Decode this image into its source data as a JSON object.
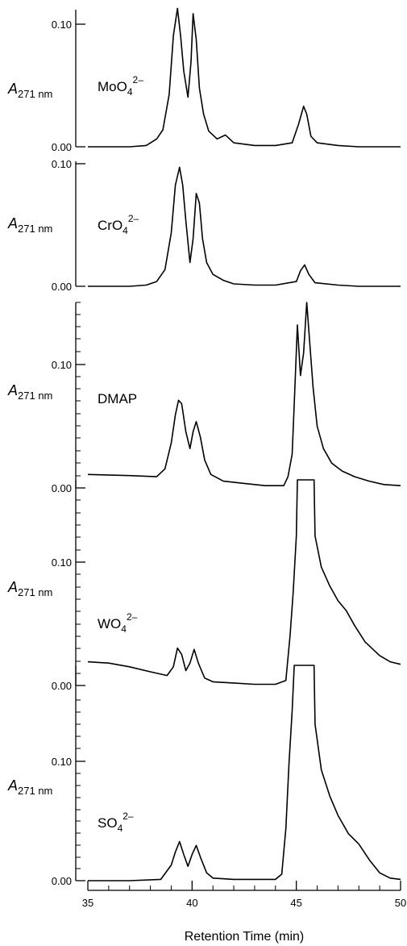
{
  "chart_data": {
    "type": "line",
    "xlabel": "Retention Time (min)",
    "xlim": [
      35,
      50
    ],
    "x_ticks": [
      "35",
      "40",
      "45",
      "50"
    ],
    "y_axis_label": {
      "prefix": "A",
      "subscript": "271 nm"
    },
    "panels": [
      {
        "species": {
          "base": "MoO",
          "sub": "4",
          "sup": "2–"
        },
        "ylim": [
          0,
          0.105
        ],
        "y_ticks": [
          "0.10",
          "0.00"
        ],
        "series": [
          {
            "x": [
              35,
              36,
              37,
              37.8,
              38.3,
              38.6,
              38.9,
              39.1,
              39.3,
              39.45,
              39.6,
              39.8,
              39.95,
              40.05,
              40.2,
              40.35,
              40.55,
              40.8,
              41.2,
              41.6,
              42,
              43,
              44,
              44.8,
              45.1,
              45.35,
              45.5,
              45.7,
              46,
              47,
              48,
              49,
              50
            ],
            "y": [
              0,
              0,
              0,
              0.001,
              0.006,
              0.013,
              0.04,
              0.085,
              0.106,
              0.085,
              0.058,
              0.038,
              0.065,
              0.102,
              0.082,
              0.045,
              0.025,
              0.012,
              0.006,
              0.009,
              0.003,
              0.001,
              0.001,
              0.003,
              0.017,
              0.031,
              0.025,
              0.008,
              0.003,
              0.001,
              0,
              0,
              0
            ]
          }
        ]
      },
      {
        "species": {
          "base": "CrO",
          "sub": "4",
          "sup": "2–"
        },
        "ylim": [
          0,
          0.105
        ],
        "y_ticks": [
          "0.10",
          "0.00"
        ],
        "series": [
          {
            "x": [
              35,
              36,
              37,
              37.8,
              38.3,
              38.7,
              39,
              39.2,
              39.4,
              39.55,
              39.7,
              39.9,
              40.05,
              40.2,
              40.35,
              40.5,
              40.7,
              41,
              41.5,
              42,
              43,
              44,
              45,
              45.2,
              45.4,
              45.6,
              45.9,
              47,
              48,
              49,
              50
            ],
            "y": [
              0,
              0,
              0,
              0.001,
              0.004,
              0.014,
              0.045,
              0.085,
              0.1,
              0.085,
              0.055,
              0.02,
              0.04,
              0.078,
              0.07,
              0.04,
              0.02,
              0.01,
              0.005,
              0.002,
              0.001,
              0.001,
              0.004,
              0.013,
              0.018,
              0.01,
              0.003,
              0.001,
              0,
              0,
              0
            ]
          }
        ]
      },
      {
        "species": {
          "text": "DMAP"
        },
        "ylim": [
          0,
          0.165
        ],
        "y_ticks": [
          "0.10",
          "0.00"
        ],
        "series": [
          {
            "x": [
              35,
              37,
              38.3,
              38.7,
              39,
              39.2,
              39.35,
              39.5,
              39.7,
              39.9,
              40.05,
              40.2,
              40.4,
              40.6,
              40.9,
              41.5,
              42.5,
              43.5,
              44.4,
              44.6,
              44.8,
              44.9,
              45.05,
              45.2,
              45.35,
              45.5,
              45.6,
              45.8,
              46,
              46.3,
              46.7,
              47.2,
              47.8,
              48.5,
              49.2,
              50
            ],
            "y": [
              0.012,
              0.011,
              0.01,
              0.017,
              0.04,
              0.065,
              0.078,
              0.075,
              0.05,
              0.035,
              0.05,
              0.059,
              0.045,
              0.025,
              0.012,
              0.006,
              0.004,
              0.002,
              0.002,
              0.01,
              0.03,
              0.075,
              0.145,
              0.1,
              0.12,
              0.165,
              0.14,
              0.09,
              0.055,
              0.035,
              0.022,
              0.015,
              0.01,
              0.006,
              0.003,
              0.002
            ]
          }
        ]
      },
      {
        "species": {
          "base": "WO",
          "sub": "4",
          "sup": "2–"
        },
        "ylim": [
          0,
          0.165
        ],
        "y_ticks": [
          "0.10",
          "0.00"
        ],
        "series": [
          {
            "x": [
              35,
              36,
              37,
              38,
              38.8,
              39.1,
              39.3,
              39.5,
              39.7,
              39.9,
              40.1,
              40.3,
              40.6,
              41,
              42,
              43,
              44,
              44.5,
              44.7,
              44.85,
              45,
              45.05,
              45.85,
              45.9,
              46.2,
              46.6,
              47,
              47.4,
              47.8,
              48.3,
              49,
              49.5,
              50
            ],
            "y": [
              0.019,
              0.018,
              0.015,
              0.011,
              0.008,
              0.015,
              0.03,
              0.025,
              0.012,
              0.018,
              0.029,
              0.018,
              0.006,
              0.003,
              0.002,
              0.001,
              0.001,
              0.004,
              0.04,
              0.075,
              0.12,
              0.165,
              0.165,
              0.12,
              0.095,
              0.08,
              0.068,
              0.06,
              0.048,
              0.035,
              0.024,
              0.019,
              0.017
            ]
          }
        ]
      },
      {
        "species": {
          "base": "SO",
          "sub": "4",
          "sup": "2–"
        },
        "ylim": [
          0,
          0.165
        ],
        "y_ticks": [
          "0.10",
          "0.00"
        ],
        "series": [
          {
            "x": [
              35,
              37,
              38.5,
              39,
              39.2,
              39.4,
              39.6,
              39.8,
              40,
              40.2,
              40.4,
              40.7,
              41,
              42,
              43,
              44,
              44.3,
              44.5,
              44.65,
              44.8,
              44.9,
              45.85,
              45.9,
              46.2,
              46.6,
              47,
              47.5,
              48,
              48.5,
              49,
              49.5,
              50
            ],
            "y": [
              0,
              0,
              0.001,
              0.012,
              0.022,
              0.03,
              0.02,
              0.011,
              0.02,
              0.027,
              0.018,
              0.006,
              0.002,
              0.001,
              0.001,
              0.001,
              0.005,
              0.04,
              0.09,
              0.13,
              0.165,
              0.165,
              0.12,
              0.085,
              0.065,
              0.05,
              0.036,
              0.028,
              0.016,
              0.006,
              0.002,
              0.001
            ]
          }
        ]
      }
    ]
  }
}
